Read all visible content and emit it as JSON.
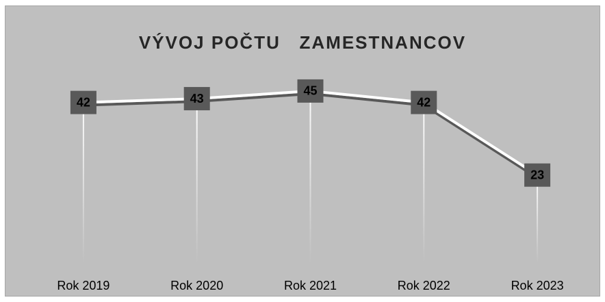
{
  "chart_data": {
    "type": "line",
    "title": "VÝVOJ POČTU   ZAMESTNANCOV",
    "categories": [
      "Rok 2019",
      "Rok 2020",
      "Rok 2021",
      "Rok 2022",
      "Rok 2023"
    ],
    "values": [
      42,
      43,
      45,
      42,
      23
    ],
    "color": "#ffffff",
    "marker_color": "#595959",
    "ylim": [
      0,
      50
    ],
    "drop_lines": true
  }
}
